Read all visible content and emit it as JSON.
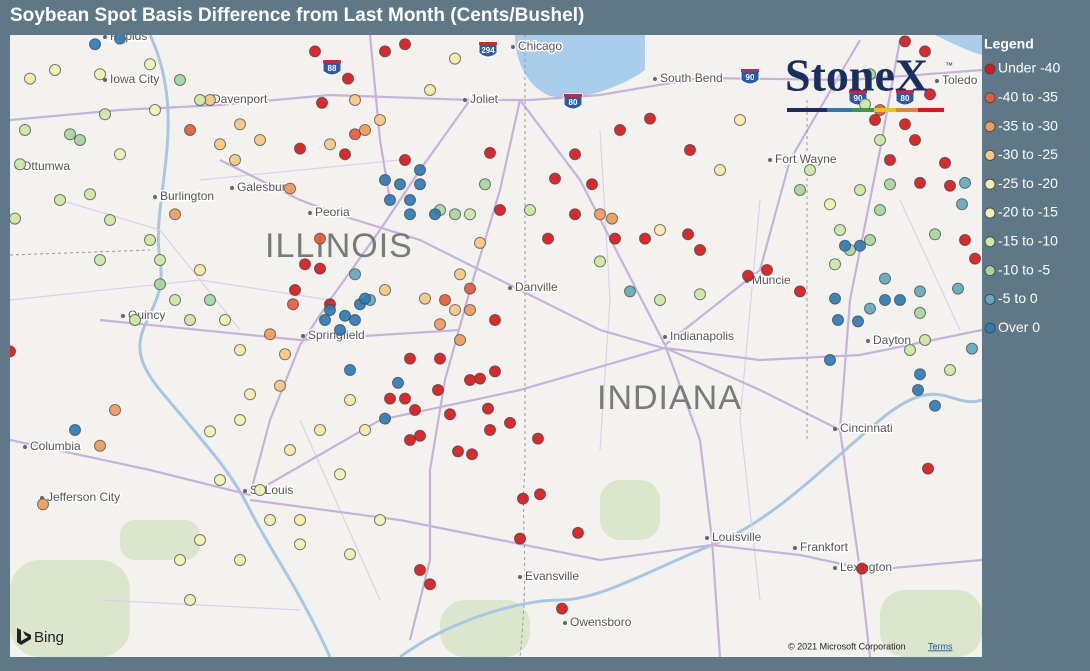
{
  "title": "Soybean Spot Basis Difference from Last Month (Cents/Bushel)",
  "legend": {
    "title": "Legend",
    "items": [
      {
        "label": "Under -40",
        "color": "#d7191c"
      },
      {
        "label": "-40 to -35",
        "color": "#e65b3a"
      },
      {
        "label": "-35 to -30",
        "color": "#f29a5a"
      },
      {
        "label": "-30 to -25",
        "color": "#f8c883"
      },
      {
        "label": "-25 to -20",
        "color": "#fdeaa8"
      },
      {
        "label": "-20 to -15",
        "color": "#f0f3b0"
      },
      {
        "label": "-15 to -10",
        "color": "#cde8a4"
      },
      {
        "label": "-10 to -5",
        "color": "#a5d79c"
      },
      {
        "label": "-5 to 0",
        "color": "#62a9b9"
      },
      {
        "label": "Over 0",
        "color": "#2c7bb6"
      }
    ]
  },
  "map": {
    "places": [
      "Chicago",
      "Joliet",
      "South Bend",
      "Davenport",
      "Iowa City",
      "Rapids",
      "Ottumwa",
      "Galesburg",
      "Burlington",
      "Peoria",
      "Quincy",
      "Springfield",
      "Danville",
      "Muncie",
      "Fort Wayne",
      "Indianapolis",
      "Dayton",
      "Cincinnati",
      "Columbia",
      "Jefferson City",
      "St Louis",
      "Louisville",
      "Frankfort",
      "Lexington",
      "Evansville",
      "Owensboro",
      "Toledo"
    ],
    "state_labels": [
      "ILLINOIS",
      "INDIANA"
    ],
    "shields": [
      "294",
      "88",
      "90",
      "80",
      "90",
      "80"
    ],
    "provider": "Bing",
    "copyright": "© 2021 Microsoft Corporation",
    "terms": "Terms"
  },
  "logo": {
    "text": "StoneX",
    "mark": "™"
  },
  "points": [
    [
      -88.5,
      39.69,
      0
    ],
    [
      -88.2,
      39.69,
      0
    ],
    [
      -87.9,
      39.54,
      0
    ],
    [
      -87.8,
      39.55,
      0
    ],
    [
      -88.7,
      39.41,
      0
    ],
    [
      -88.55,
      39.41,
      0
    ],
    [
      -88.45,
      39.33,
      0
    ],
    [
      -88.1,
      39.3,
      0
    ],
    [
      -87.72,
      39.34,
      0
    ],
    [
      -88.4,
      39.15,
      0
    ],
    [
      -88.02,
      39.04,
      0
    ],
    [
      -87.88,
      39.02,
      0
    ],
    [
      -87.7,
      39.19,
      0
    ],
    [
      -87.5,
      39.24,
      0
    ],
    [
      -87.22,
      39.13,
      0
    ],
    [
      -87.37,
      38.71,
      0
    ],
    [
      -87.2,
      38.74,
      0
    ],
    [
      -87.4,
      38.43,
      0
    ],
    [
      -86.82,
      38.47,
      0
    ],
    [
      -86.98,
      37.94,
      0
    ],
    [
      -88.4,
      38.21,
      0
    ],
    [
      -88.3,
      38.11,
      0
    ],
    [
      -87.65,
      39.6,
      0
    ],
    [
      -87.6,
      40.73,
      0
    ],
    [
      -87.12,
      40.53,
      0
    ],
    [
      -86.85,
      40.7,
      0
    ],
    [
      -86.45,
      40.53,
      0
    ],
    [
      -86.15,
      40.53,
      0
    ],
    [
      -85.72,
      40.56,
      0
    ],
    [
      -85.6,
      40.45,
      0
    ],
    [
      -85.12,
      40.27,
      0
    ],
    [
      -84.93,
      40.31,
      0
    ],
    [
      -84.6,
      40.16,
      0
    ],
    [
      -86.1,
      41.37,
      0
    ],
    [
      -85.7,
      41.15,
      0
    ],
    [
      -88.55,
      41.89,
      0
    ],
    [
      -88.75,
      41.84,
      0
    ],
    [
      -89.12,
      41.65,
      0
    ],
    [
      -89.38,
      41.48,
      0
    ],
    [
      -89.6,
      41.16,
      0
    ],
    [
      -89.15,
      41.12,
      0
    ],
    [
      -88.55,
      41.08,
      0
    ],
    [
      -89.45,
      41.84,
      0
    ],
    [
      -87.05,
      40.95,
      0
    ],
    [
      -86.68,
      40.91,
      0
    ],
    [
      -86.85,
      41.12,
      0
    ],
    [
      -87.7,
      41.13,
      0
    ],
    [
      -86.4,
      41.29,
      0
    ],
    [
      -83.55,
      41.91,
      0
    ],
    [
      -83.35,
      41.84,
      0
    ],
    [
      -83.3,
      41.54,
      0
    ],
    [
      -83.15,
      41.06,
      0
    ],
    [
      -83.1,
      40.9,
      0
    ],
    [
      -82.95,
      40.52,
      0
    ],
    [
      -82.85,
      40.39,
      0
    ],
    [
      -83.4,
      40.92,
      0
    ],
    [
      -83.7,
      41.08,
      0
    ],
    [
      -83.98,
      38.22,
      0
    ],
    [
      -83.32,
      38.92,
      0
    ],
    [
      -89.55,
      40.35,
      0
    ],
    [
      -89.4,
      40.32,
      0
    ],
    [
      -89.65,
      40.17,
      0
    ],
    [
      -89.3,
      40.07,
      0
    ],
    [
      -87.65,
      39.96,
      0
    ],
    [
      -88.5,
      39.12,
      0
    ],
    [
      -88.22,
      39.47,
      0
    ],
    [
      -92.5,
      39.74,
      0
    ],
    [
      -83.55,
      41.33,
      0
    ],
    [
      -83.45,
      41.22,
      0
    ],
    [
      -83.85,
      41.36,
      0
    ],
    [
      -89.67,
      40.07,
      1
    ],
    [
      -88.15,
      40.1,
      1
    ],
    [
      -89.4,
      40.53,
      1
    ],
    [
      -90.7,
      41.29,
      1
    ],
    [
      -89.05,
      41.26,
      1
    ],
    [
      -87.9,
      40.18,
      1
    ],
    [
      -83.8,
      41.43,
      1
    ],
    [
      -89.9,
      39.86,
      2
    ],
    [
      -87.9,
      40.03,
      2
    ],
    [
      -88.0,
      39.82,
      2
    ],
    [
      -86.6,
      40.7,
      2
    ],
    [
      -86.48,
      40.67,
      2
    ],
    [
      -91.6,
      39.08,
      2
    ],
    [
      -91.45,
      39.33,
      2
    ],
    [
      -92.17,
      38.67,
      2
    ],
    [
      -89.7,
      40.88,
      2
    ],
    [
      -88.95,
      41.29,
      2
    ],
    [
      -90.85,
      40.7,
      2
    ],
    [
      -88.2,
      39.93,
      2
    ],
    [
      -90.2,
      41.33,
      3
    ],
    [
      -90.0,
      41.22,
      3
    ],
    [
      -89.05,
      41.5,
      3
    ],
    [
      -88.8,
      41.36,
      3
    ],
    [
      -88.35,
      40.11,
      3
    ],
    [
      -88.05,
      40.03,
      3
    ],
    [
      -87.8,
      40.5,
      3
    ],
    [
      -89.75,
      39.72,
      3
    ],
    [
      -89.8,
      39.5,
      3
    ],
    [
      -90.4,
      41.19,
      3
    ],
    [
      -90.5,
      41.5,
      3
    ],
    [
      -90.25,
      41.08,
      3
    ],
    [
      -88.0,
      40.28,
      3
    ],
    [
      -88.75,
      40.17,
      3
    ],
    [
      -89.3,
      41.19,
      3
    ],
    [
      -90.6,
      40.31,
      4
    ],
    [
      -90.2,
      39.75,
      4
    ],
    [
      -90.1,
      39.44,
      4
    ],
    [
      -89.7,
      39.05,
      4
    ],
    [
      -89.4,
      39.19,
      4
    ],
    [
      -89.1,
      39.4,
      4
    ],
    [
      -88.3,
      41.57,
      4
    ],
    [
      -88.05,
      41.79,
      4
    ],
    [
      -85.4,
      41.01,
      4
    ],
    [
      -85.2,
      41.36,
      4
    ],
    [
      -86.0,
      40.59,
      4
    ],
    [
      -92.3,
      41.65,
      4
    ],
    [
      -88.95,
      39.19,
      4
    ],
    [
      -89.6,
      38.56,
      4
    ],
    [
      -90.35,
      39.96,
      5
    ],
    [
      -90.2,
      39.26,
      5
    ],
    [
      -90.5,
      39.18,
      5
    ],
    [
      -90.0,
      38.77,
      5
    ],
    [
      -89.9,
      38.56,
      5
    ],
    [
      -90.2,
      38.28,
      5
    ],
    [
      -89.6,
      38.39,
      5
    ],
    [
      -89.1,
      38.32,
      5
    ],
    [
      -88.8,
      38.56,
      5
    ],
    [
      -89.2,
      38.88,
      5
    ],
    [
      -90.8,
      38.28,
      5
    ],
    [
      -90.7,
      38.0,
      5
    ],
    [
      -90.6,
      38.42,
      5
    ],
    [
      -91.6,
      41.68,
      5
    ],
    [
      -91.1,
      41.75,
      5
    ],
    [
      -92.05,
      41.71,
      5
    ],
    [
      -91.05,
      41.43,
      5
    ],
    [
      -91.4,
      41.12,
      5
    ],
    [
      -84.3,
      40.77,
      5
    ],
    [
      -90.4,
      38.84,
      5
    ],
    [
      -92.4,
      41.05,
      6
    ],
    [
      -92.0,
      40.8,
      6
    ],
    [
      -91.7,
      40.84,
      6
    ],
    [
      -91.5,
      40.66,
      6
    ],
    [
      -91.1,
      40.52,
      6
    ],
    [
      -90.85,
      40.1,
      6
    ],
    [
      -91.25,
      39.96,
      6
    ],
    [
      -90.7,
      39.96,
      6
    ],
    [
      -91.0,
      40.38,
      6
    ],
    [
      -91.6,
      40.38,
      6
    ],
    [
      -87.9,
      40.7,
      6
    ],
    [
      -87.3,
      40.73,
      6
    ],
    [
      -85.6,
      40.14,
      6
    ],
    [
      -86.0,
      40.1,
      6
    ],
    [
      -86.6,
      40.37,
      6
    ],
    [
      -84.0,
      40.87,
      6
    ],
    [
      -84.2,
      40.59,
      6
    ],
    [
      -84.25,
      40.35,
      6
    ],
    [
      -84.5,
      41.01,
      6
    ],
    [
      -83.95,
      41.47,
      6
    ],
    [
      -83.8,
      41.22,
      6
    ],
    [
      -83.35,
      39.82,
      6
    ],
    [
      -83.1,
      39.61,
      6
    ],
    [
      -92.35,
      41.29,
      6
    ],
    [
      -91.55,
      41.4,
      6
    ],
    [
      -90.6,
      41.5,
      6
    ],
    [
      -92.45,
      40.67,
      6
    ],
    [
      -83.5,
      39.75,
      6
    ],
    [
      -91.9,
      41.26,
      7
    ],
    [
      -91.8,
      41.22,
      7
    ],
    [
      -90.5,
      40.1,
      7
    ],
    [
      -88.05,
      40.7,
      7
    ],
    [
      -87.75,
      40.91,
      7
    ],
    [
      -84.1,
      40.45,
      7
    ],
    [
      -83.9,
      40.52,
      7
    ],
    [
      -84.6,
      40.87,
      7
    ],
    [
      -83.9,
      41.68,
      7
    ],
    [
      -83.7,
      40.91,
      7
    ],
    [
      -83.8,
      40.73,
      7
    ],
    [
      -83.25,
      40.56,
      7
    ],
    [
      -83.4,
      40.01,
      7
    ],
    [
      -90.8,
      41.64,
      7
    ],
    [
      -91.0,
      40.21,
      7
    ],
    [
      -88.2,
      40.73,
      7
    ],
    [
      -82.95,
      40.92,
      8
    ],
    [
      -83.02,
      40.18,
      8
    ],
    [
      -83.9,
      40.04,
      8
    ],
    [
      -83.4,
      40.16,
      8
    ],
    [
      -82.88,
      39.76,
      8
    ],
    [
      -83.75,
      40.25,
      8
    ],
    [
      -86.3,
      40.16,
      8
    ],
    [
      -88.9,
      40.1,
      8
    ],
    [
      -89.05,
      40.28,
      8
    ],
    [
      -82.98,
      40.77,
      8
    ],
    [
      -88.75,
      40.94,
      9
    ],
    [
      -88.6,
      40.91,
      9
    ],
    [
      -88.5,
      40.8,
      9
    ],
    [
      -88.7,
      40.8,
      9
    ],
    [
      -88.4,
      41.01,
      9
    ],
    [
      -88.25,
      40.7,
      9
    ],
    [
      -88.5,
      40.7,
      9
    ],
    [
      -88.4,
      40.91,
      9
    ],
    [
      -89.3,
      40.03,
      9
    ],
    [
      -89.15,
      39.99,
      9
    ],
    [
      -89.05,
      39.96,
      9
    ],
    [
      -89.0,
      40.07,
      9
    ],
    [
      -88.95,
      40.11,
      9
    ],
    [
      -89.35,
      39.96,
      9
    ],
    [
      -89.2,
      39.89,
      9
    ],
    [
      -89.1,
      39.61,
      9
    ],
    [
      -88.75,
      39.27,
      9
    ],
    [
      -88.62,
      39.52,
      9
    ],
    [
      -84.25,
      40.11,
      9
    ],
    [
      -84.22,
      39.96,
      9
    ],
    [
      -84.02,
      39.95,
      9
    ],
    [
      -84.15,
      40.48,
      9
    ],
    [
      -84.0,
      40.48,
      9
    ],
    [
      -83.75,
      40.1,
      9
    ],
    [
      -83.6,
      40.1,
      9
    ],
    [
      -83.4,
      39.58,
      9
    ],
    [
      -83.42,
      39.47,
      9
    ],
    [
      -83.25,
      39.36,
      9
    ],
    [
      -84.3,
      39.68,
      9
    ],
    [
      -91.85,
      39.19,
      9
    ],
    [
      -91.65,
      41.89,
      9
    ],
    [
      -91.4,
      41.93,
      9
    ]
  ]
}
